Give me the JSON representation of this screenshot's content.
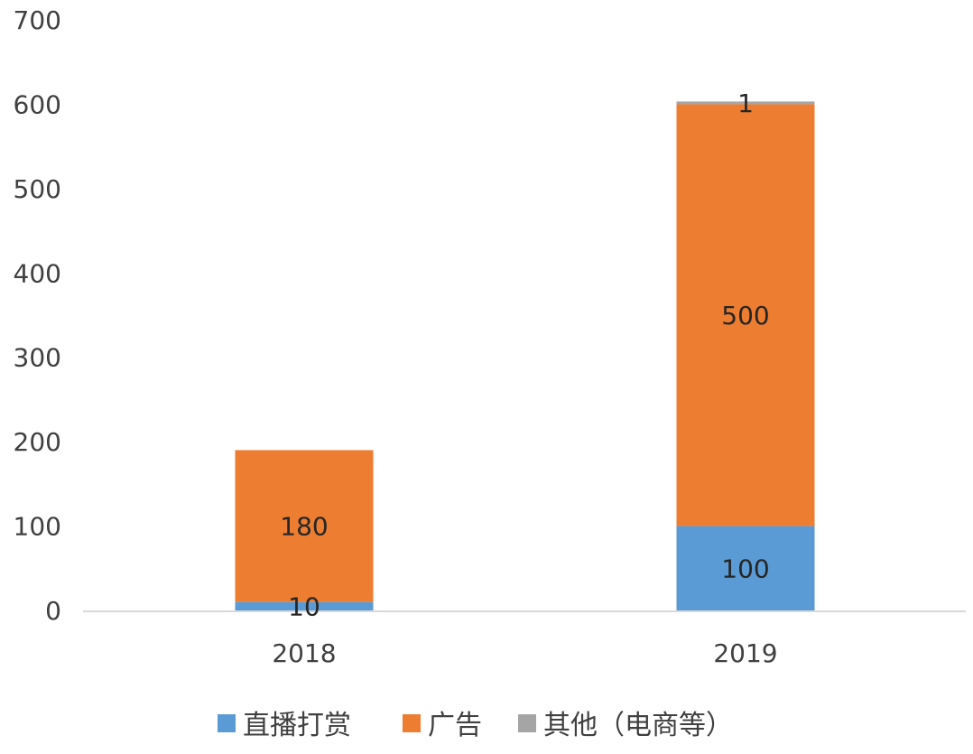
{
  "chart_data": {
    "type": "bar",
    "stacked": true,
    "categories": [
      "2018",
      "2019"
    ],
    "series": [
      {
        "name": "直播打赏",
        "values": [
          10,
          100
        ],
        "labels": [
          "10",
          "100"
        ],
        "color": "#5B9BD5"
      },
      {
        "name": "广告",
        "values": [
          180,
          500
        ],
        "labels": [
          "180",
          "500"
        ],
        "color": "#ED7D31"
      },
      {
        "name": "其他（电商等）",
        "values": [
          0,
          1
        ],
        "labels": [
          "",
          "1"
        ],
        "color": "#A5A5A5"
      }
    ],
    "ylim": [
      0,
      700
    ],
    "yticks": [
      0,
      100,
      200,
      300,
      400,
      500,
      600,
      700
    ],
    "title": "",
    "xlabel": "",
    "ylabel": "",
    "grid": false,
    "legend_position": "bottom"
  }
}
